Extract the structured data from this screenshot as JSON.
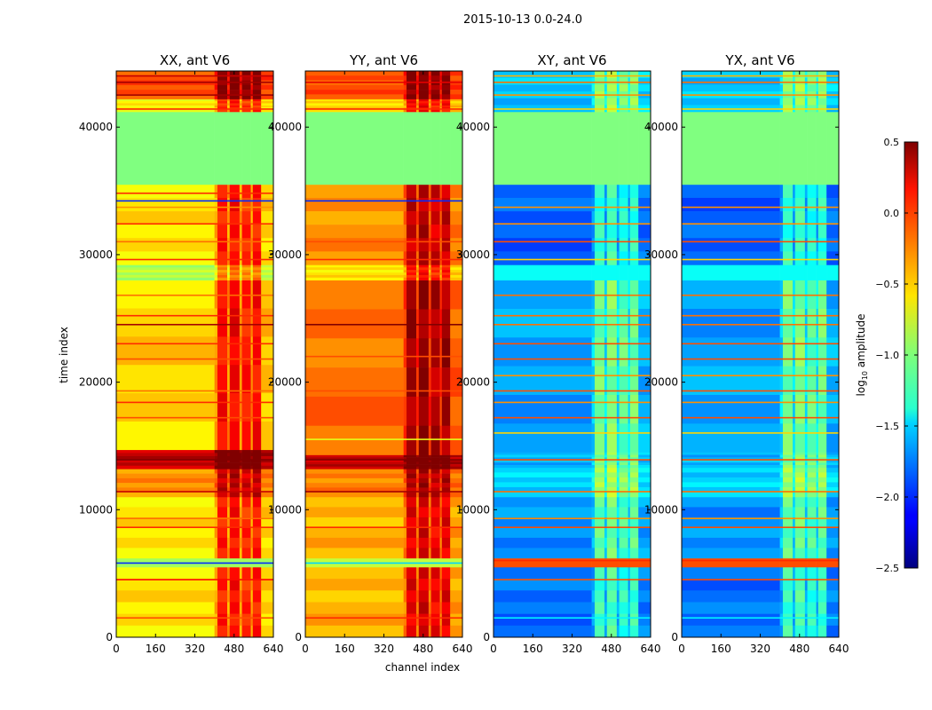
{
  "chart_data": {
    "type": "heatmap",
    "title": "2015-10-13 0.0-24.0",
    "xlabel": "channel index",
    "ylabel": "time index",
    "xlim": [
      0,
      640
    ],
    "ylim": [
      0,
      44400
    ],
    "xticks": [
      0,
      160,
      320,
      480,
      640
    ],
    "yticks": [
      0,
      10000,
      20000,
      30000,
      40000
    ],
    "ytick_labels": [
      "0",
      "10000",
      "20000",
      "30000",
      "40000"
    ],
    "xtick_labels": [
      "0",
      "160",
      "320",
      "480",
      "640"
    ],
    "colormap": "jet",
    "colorbar": {
      "label": "log10 amplitude",
      "label_main": "log",
      "label_sub": "10",
      "label_rest": " amplitude",
      "vmin": -2.5,
      "vmax": 0.5,
      "ticks": [
        -2.5,
        -2.0,
        -1.5,
        -1.0,
        -0.5,
        0.0,
        0.5
      ],
      "tick_labels": [
        "−2.5",
        "−2.0",
        "−1.5",
        "−1.0",
        "−0.5",
        "0.0",
        "0.5"
      ]
    },
    "channel_profile": [
      [
        0,
        400,
        0
      ],
      [
        400,
        412,
        0.15
      ],
      [
        412,
        452,
        0.6
      ],
      [
        452,
        462,
        0.2
      ],
      [
        462,
        502,
        0.65
      ],
      [
        502,
        512,
        0.2
      ],
      [
        512,
        548,
        0.55
      ],
      [
        548,
        556,
        0.2
      ],
      [
        556,
        590,
        0.6
      ],
      [
        590,
        640,
        0.05
      ]
    ],
    "panels": [
      {
        "title": "XX, ant V6",
        "bands": [
          [
            0,
            5500,
            -0.55,
            1
          ],
          [
            5500,
            6200,
            -0.9,
            0
          ],
          [
            6200,
            11000,
            -0.55,
            1
          ],
          [
            11000,
            13200,
            -0.3,
            1
          ],
          [
            13200,
            14700,
            0.3,
            1
          ],
          [
            14700,
            28000,
            -0.5,
            1
          ],
          [
            28000,
            29200,
            -0.85,
            1
          ],
          [
            29200,
            35500,
            -0.55,
            1
          ],
          [
            35500,
            41200,
            -1.0,
            0
          ],
          [
            41200,
            42200,
            -0.6,
            1
          ],
          [
            42200,
            44400,
            -0.1,
            1
          ]
        ],
        "lines": [
          [
            1500,
            -0.1
          ],
          [
            4500,
            0.1
          ],
          [
            5800,
            -2.0
          ],
          [
            8600,
            0.0
          ],
          [
            9300,
            -0.2
          ],
          [
            11400,
            0.3
          ],
          [
            13900,
            0.5
          ],
          [
            17200,
            -0.1
          ],
          [
            18400,
            0.0
          ],
          [
            19300,
            -0.2
          ],
          [
            21800,
            -0.1
          ],
          [
            23000,
            0.0
          ],
          [
            24500,
            0.4
          ],
          [
            25200,
            0.0
          ],
          [
            26800,
            -0.2
          ],
          [
            29600,
            0.0
          ],
          [
            31000,
            -0.2
          ],
          [
            32400,
            0.0
          ],
          [
            33700,
            -0.3
          ],
          [
            34200,
            -2.0
          ],
          [
            34800,
            0.0
          ],
          [
            41400,
            0.0
          ],
          [
            42500,
            0.4
          ],
          [
            43500,
            0.4
          ],
          [
            44000,
            0.3
          ]
        ]
      },
      {
        "title": "YY, ant V6",
        "bands": [
          [
            0,
            5500,
            -0.4,
            1
          ],
          [
            5500,
            6200,
            -0.8,
            0
          ],
          [
            6200,
            11000,
            -0.4,
            1
          ],
          [
            11000,
            13200,
            -0.25,
            1
          ],
          [
            13200,
            14300,
            0.3,
            1
          ],
          [
            14300,
            28000,
            -0.2,
            1
          ],
          [
            28000,
            29200,
            -0.55,
            1
          ],
          [
            29200,
            35500,
            -0.3,
            1
          ],
          [
            35500,
            41200,
            -1.0,
            0
          ],
          [
            41200,
            42200,
            -0.5,
            1
          ],
          [
            42200,
            44400,
            -0.1,
            1
          ]
        ],
        "lines": [
          [
            1500,
            0.0
          ],
          [
            5800,
            -1.5
          ],
          [
            8600,
            0.0
          ],
          [
            11400,
            0.4
          ],
          [
            13900,
            0.5
          ],
          [
            15500,
            -0.7
          ],
          [
            19300,
            -0.1
          ],
          [
            22000,
            -0.1
          ],
          [
            24500,
            0.5
          ],
          [
            29600,
            0.0
          ],
          [
            31000,
            -0.1
          ],
          [
            34200,
            -2.0
          ],
          [
            41400,
            0.0
          ],
          [
            43500,
            0.2
          ]
        ]
      },
      {
        "title": "XY, ant V6",
        "bands": [
          [
            0,
            5500,
            -1.8,
            1
          ],
          [
            5500,
            6200,
            -0.1,
            0
          ],
          [
            6200,
            11000,
            -1.7,
            1
          ],
          [
            11000,
            13300,
            -1.5,
            1
          ],
          [
            13300,
            14500,
            -1.6,
            1
          ],
          [
            14500,
            28000,
            -1.65,
            1
          ],
          [
            28000,
            29200,
            -1.35,
            0
          ],
          [
            29200,
            35500,
            -1.85,
            1
          ],
          [
            35500,
            41200,
            -1.0,
            0
          ],
          [
            41200,
            44400,
            -1.55,
            1
          ]
        ],
        "lines": [
          [
            1500,
            -1.4
          ],
          [
            4500,
            -0.1
          ],
          [
            6000,
            0.0
          ],
          [
            8600,
            -0.1
          ],
          [
            9300,
            -0.3
          ],
          [
            11400,
            -0.2
          ],
          [
            13900,
            -0.1
          ],
          [
            16000,
            -0.5
          ],
          [
            17200,
            -0.1
          ],
          [
            18400,
            -0.3
          ],
          [
            19300,
            -0.1
          ],
          [
            20500,
            -0.3
          ],
          [
            21800,
            -0.1
          ],
          [
            23000,
            -0.1
          ],
          [
            24500,
            -0.2
          ],
          [
            25200,
            -0.2
          ],
          [
            26800,
            -0.2
          ],
          [
            29600,
            -0.5
          ],
          [
            31000,
            -0.1
          ],
          [
            32400,
            -0.3
          ],
          [
            33700,
            -0.3
          ],
          [
            41400,
            -0.5
          ],
          [
            42500,
            -0.3
          ],
          [
            43500,
            -0.2
          ],
          [
            44000,
            -0.4
          ]
        ]
      },
      {
        "title": "YX, ant V6",
        "bands": [
          [
            0,
            5500,
            -1.8,
            1
          ],
          [
            5500,
            6200,
            -0.1,
            0
          ],
          [
            6200,
            11000,
            -1.7,
            1
          ],
          [
            11000,
            13300,
            -1.5,
            1
          ],
          [
            13300,
            14500,
            -1.6,
            1
          ],
          [
            14500,
            28000,
            -1.65,
            1
          ],
          [
            28000,
            29200,
            -1.35,
            0
          ],
          [
            29200,
            35500,
            -1.85,
            1
          ],
          [
            35500,
            41200,
            -1.0,
            0
          ],
          [
            41200,
            44400,
            -1.55,
            1
          ]
        ],
        "lines": [
          [
            1500,
            -1.4
          ],
          [
            4500,
            -0.1
          ],
          [
            6000,
            0.0
          ],
          [
            8600,
            -0.1
          ],
          [
            9300,
            -0.3
          ],
          [
            11400,
            -0.2
          ],
          [
            13900,
            -0.1
          ],
          [
            16000,
            -0.5
          ],
          [
            17200,
            -0.1
          ],
          [
            18400,
            -0.3
          ],
          [
            19300,
            -0.1
          ],
          [
            20500,
            -0.3
          ],
          [
            21800,
            -0.1
          ],
          [
            23000,
            -0.1
          ],
          [
            24500,
            -0.2
          ],
          [
            25200,
            -0.2
          ],
          [
            26800,
            -0.2
          ],
          [
            29600,
            -0.5
          ],
          [
            31000,
            -0.1
          ],
          [
            32400,
            -0.3
          ],
          [
            33700,
            -0.3
          ],
          [
            41400,
            -0.5
          ],
          [
            42500,
            -0.3
          ],
          [
            43500,
            -0.2
          ],
          [
            44000,
            -0.4
          ]
        ]
      }
    ]
  }
}
